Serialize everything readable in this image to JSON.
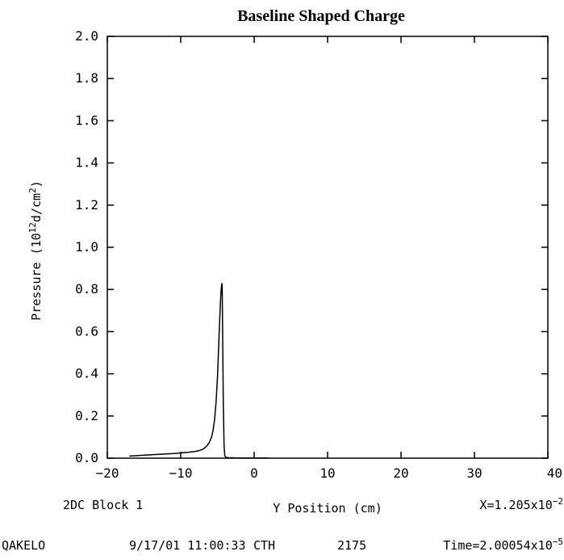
{
  "chart_data": {
    "type": "line",
    "title": "Baseline Shaped Charge",
    "xlabel": "Y Position (cm)",
    "ylabel": {
      "prefix": "Pressure (10",
      "exp": "12",
      "mid": "d/cm",
      "exp2": "2",
      "suffix": ")"
    },
    "xlim": [
      -20,
      40
    ],
    "ylim": [
      0.0,
      2.0
    ],
    "x_ticks": [
      -20,
      -10,
      0,
      10,
      20,
      30,
      40
    ],
    "x_tick_labels": [
      "−20",
      "−10",
      "0",
      "10",
      "20",
      "30",
      "40"
    ],
    "y_ticks": [
      0.0,
      0.2,
      0.4,
      0.6,
      0.8,
      1.0,
      1.2,
      1.4,
      1.6,
      1.8,
      2.0
    ],
    "y_tick_labels": [
      "0.0",
      "0.2",
      "0.4",
      "0.6",
      "0.8",
      "1.0",
      "1.2",
      "1.4",
      "1.6",
      "1.8",
      "2.0"
    ],
    "grid": false,
    "series": [
      {
        "x": [
          -17.0,
          -16.0,
          -15.0,
          -14.0,
          -13.0,
          -12.0,
          -11.0,
          -10.0,
          -9.0,
          -8.0,
          -7.5,
          -7.0,
          -6.7,
          -6.4,
          -6.1,
          -5.8,
          -5.6,
          -5.4,
          -5.2,
          -5.0,
          -4.9,
          -4.8,
          -4.7,
          -4.6,
          -4.5,
          -4.4,
          -4.35,
          -4.3,
          -4.2,
          -4.1,
          -4.0,
          -3.8,
          -3.5,
          -3.0,
          -2.0,
          0.0,
          2.0
        ],
        "y": [
          0.01,
          0.012,
          0.014,
          0.016,
          0.018,
          0.02,
          0.022,
          0.025,
          0.028,
          0.032,
          0.036,
          0.042,
          0.05,
          0.06,
          0.075,
          0.1,
          0.13,
          0.18,
          0.26,
          0.38,
          0.47,
          0.56,
          0.65,
          0.73,
          0.8,
          0.83,
          0.81,
          0.6,
          0.25,
          0.06,
          0.01,
          0.004,
          0.002,
          0.002,
          0.001,
          0.001,
          0.001
        ]
      }
    ]
  },
  "footer": {
    "block_label": "2DC Block 1",
    "x_readout": {
      "prefix": "X=1.205x10",
      "exp": "−2"
    },
    "user": "QAKELO",
    "datetime": "9/17/01 11:00:33",
    "code": "CTH",
    "cycle": "2175",
    "time_readout": {
      "prefix": "Time=2.00054x10",
      "exp": "−5"
    }
  }
}
